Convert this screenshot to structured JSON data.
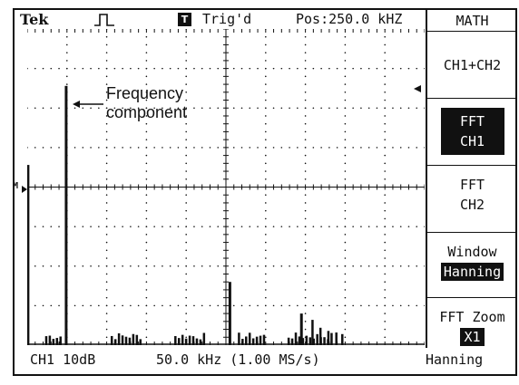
{
  "header": {
    "brand": "Tek",
    "trigger_icon_letter": "T",
    "trigger_status": "Trig'd",
    "position": "Pos:250.0 kHZ"
  },
  "cursor_label": "M",
  "annotation": {
    "line1": "Frequency",
    "line2": "component"
  },
  "footer": {
    "channel_scale": "CH1 10dB",
    "span_rate": "50.0 kHz (1.00 MS/s)",
    "window": "Hanning"
  },
  "menu": {
    "title": "MATH",
    "items": [
      {
        "label": "CH1+CH2"
      },
      {
        "line1": "FFT",
        "line2": "CH1",
        "selected": true
      },
      {
        "line1": "FFT",
        "line2": "CH2"
      },
      {
        "label": "Window",
        "value": "Hanning"
      },
      {
        "label": "FFT Zoom",
        "value": "X1"
      }
    ]
  },
  "spectrum": {
    "divisions_x": 10,
    "divisions_y": 8,
    "trace_color": "#111111",
    "components": [
      {
        "div": 0.02,
        "level": 0.57
      },
      {
        "div": 0.98,
        "level": 0.82
      },
      {
        "div": 5.1,
        "level": 0.2
      },
      {
        "div": 6.9,
        "level": 0.1
      }
    ]
  }
}
